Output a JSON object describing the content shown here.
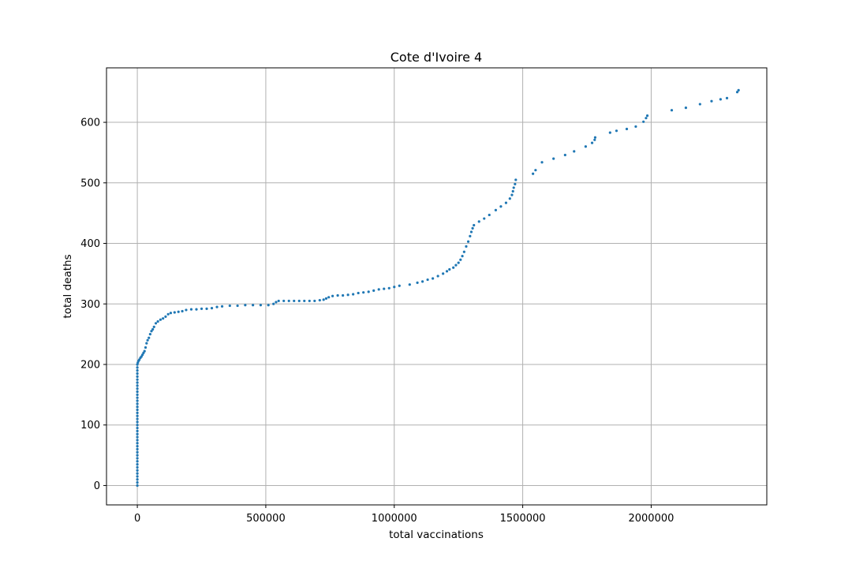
{
  "chart_data": {
    "type": "scatter",
    "title": "Cote d'Ivoire 4",
    "xlabel": "total vaccinations",
    "ylabel": "total deaths",
    "xlim": [
      -120000,
      2450000
    ],
    "ylim": [
      -32,
      690
    ],
    "xticks": [
      0,
      500000,
      1000000,
      1500000,
      2000000
    ],
    "yticks": [
      0,
      100,
      200,
      300,
      400,
      500,
      600
    ],
    "xtick_labels": [
      "0",
      "500000",
      "1000000",
      "1500000",
      "2000000"
    ],
    "ytick_labels": [
      "0",
      "100",
      "200",
      "300",
      "400",
      "500",
      "600"
    ],
    "grid": true,
    "color": "#1f77b4",
    "points": [
      [
        0,
        0
      ],
      [
        0,
        5
      ],
      [
        0,
        10
      ],
      [
        0,
        15
      ],
      [
        0,
        20
      ],
      [
        0,
        25
      ],
      [
        0,
        30
      ],
      [
        0,
        35
      ],
      [
        0,
        40
      ],
      [
        0,
        45
      ],
      [
        0,
        50
      ],
      [
        0,
        55
      ],
      [
        0,
        60
      ],
      [
        0,
        65
      ],
      [
        0,
        70
      ],
      [
        0,
        75
      ],
      [
        0,
        80
      ],
      [
        0,
        85
      ],
      [
        0,
        90
      ],
      [
        0,
        95
      ],
      [
        0,
        100
      ],
      [
        0,
        105
      ],
      [
        0,
        110
      ],
      [
        0,
        115
      ],
      [
        0,
        120
      ],
      [
        0,
        125
      ],
      [
        0,
        130
      ],
      [
        0,
        135
      ],
      [
        0,
        140
      ],
      [
        0,
        145
      ],
      [
        0,
        150
      ],
      [
        0,
        155
      ],
      [
        0,
        160
      ],
      [
        0,
        165
      ],
      [
        0,
        170
      ],
      [
        0,
        175
      ],
      [
        0,
        180
      ],
      [
        0,
        185
      ],
      [
        0,
        190
      ],
      [
        0,
        195
      ],
      [
        0,
        200
      ],
      [
        2000,
        203
      ],
      [
        5000,
        206
      ],
      [
        8000,
        208
      ],
      [
        12000,
        211
      ],
      [
        16000,
        213
      ],
      [
        20000,
        216
      ],
      [
        24000,
        219
      ],
      [
        28000,
        222
      ],
      [
        32000,
        228
      ],
      [
        36000,
        235
      ],
      [
        40000,
        240
      ],
      [
        45000,
        244
      ],
      [
        50000,
        250
      ],
      [
        55000,
        255
      ],
      [
        60000,
        258
      ],
      [
        65000,
        262
      ],
      [
        72000,
        268
      ],
      [
        80000,
        271
      ],
      [
        90000,
        274
      ],
      [
        100000,
        276
      ],
      [
        110000,
        279
      ],
      [
        120000,
        283
      ],
      [
        130000,
        285
      ],
      [
        145000,
        286
      ],
      [
        160000,
        287
      ],
      [
        175000,
        288
      ],
      [
        190000,
        290
      ],
      [
        210000,
        291
      ],
      [
        230000,
        291
      ],
      [
        250000,
        292
      ],
      [
        270000,
        292
      ],
      [
        290000,
        293
      ],
      [
        310000,
        295
      ],
      [
        330000,
        296
      ],
      [
        360000,
        297
      ],
      [
        390000,
        297
      ],
      [
        420000,
        298
      ],
      [
        450000,
        298
      ],
      [
        480000,
        298
      ],
      [
        510000,
        298
      ],
      [
        530000,
        300
      ],
      [
        540000,
        303
      ],
      [
        550000,
        305
      ],
      [
        570000,
        305
      ],
      [
        590000,
        305
      ],
      [
        610000,
        305
      ],
      [
        630000,
        305
      ],
      [
        650000,
        305
      ],
      [
        670000,
        305
      ],
      [
        690000,
        305
      ],
      [
        710000,
        306
      ],
      [
        725000,
        307
      ],
      [
        735000,
        309
      ],
      [
        745000,
        311
      ],
      [
        760000,
        313
      ],
      [
        780000,
        314
      ],
      [
        800000,
        314
      ],
      [
        820000,
        315
      ],
      [
        840000,
        316
      ],
      [
        860000,
        318
      ],
      [
        880000,
        319
      ],
      [
        900000,
        320
      ],
      [
        920000,
        322
      ],
      [
        940000,
        324
      ],
      [
        960000,
        325
      ],
      [
        980000,
        326
      ],
      [
        1000000,
        328
      ],
      [
        1020000,
        330
      ],
      [
        1060000,
        332
      ],
      [
        1090000,
        335
      ],
      [
        1110000,
        337
      ],
      [
        1130000,
        340
      ],
      [
        1150000,
        342
      ],
      [
        1170000,
        346
      ],
      [
        1190000,
        350
      ],
      [
        1205000,
        354
      ],
      [
        1215000,
        357
      ],
      [
        1230000,
        360
      ],
      [
        1240000,
        364
      ],
      [
        1250000,
        368
      ],
      [
        1258000,
        373
      ],
      [
        1265000,
        379
      ],
      [
        1272000,
        386
      ],
      [
        1280000,
        395
      ],
      [
        1288000,
        403
      ],
      [
        1295000,
        412
      ],
      [
        1300000,
        419
      ],
      [
        1305000,
        425
      ],
      [
        1310000,
        430
      ],
      [
        1330000,
        436
      ],
      [
        1350000,
        441
      ],
      [
        1370000,
        447
      ],
      [
        1395000,
        455
      ],
      [
        1415000,
        461
      ],
      [
        1435000,
        467
      ],
      [
        1450000,
        474
      ],
      [
        1458000,
        480
      ],
      [
        1462000,
        486
      ],
      [
        1465000,
        492
      ],
      [
        1470000,
        498
      ],
      [
        1473000,
        505
      ],
      [
        1540000,
        515
      ],
      [
        1550000,
        521
      ],
      [
        1575000,
        534
      ],
      [
        1620000,
        540
      ],
      [
        1665000,
        546
      ],
      [
        1700000,
        552
      ],
      [
        1745000,
        560
      ],
      [
        1770000,
        566
      ],
      [
        1780000,
        571
      ],
      [
        1782000,
        575
      ],
      [
        1840000,
        583
      ],
      [
        1865000,
        586
      ],
      [
        1905000,
        589
      ],
      [
        1940000,
        593
      ],
      [
        1970000,
        601
      ],
      [
        1980000,
        607
      ],
      [
        1985000,
        611
      ],
      [
        2080000,
        620
      ],
      [
        2135000,
        624
      ],
      [
        2190000,
        630
      ],
      [
        2235000,
        635
      ],
      [
        2270000,
        638
      ],
      [
        2295000,
        640
      ],
      [
        2335000,
        650
      ],
      [
        2340000,
        653
      ]
    ]
  }
}
